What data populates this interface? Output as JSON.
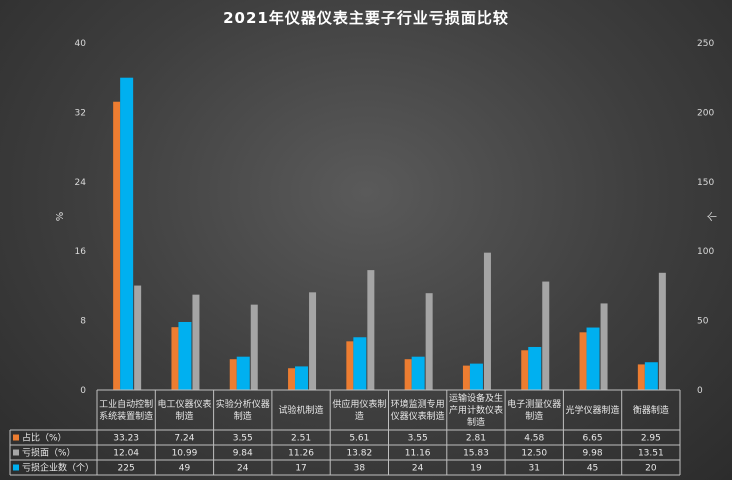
{
  "chart_data": {
    "type": "bar",
    "title": "2021年仪器仪表主要子行业亏损面比较",
    "ylabel": "%",
    "y2label": "个",
    "ylim": [
      0,
      40
    ],
    "y2lim": [
      0,
      250
    ],
    "yticks": [
      0,
      8,
      16,
      24,
      32,
      40
    ],
    "y2ticks": [
      0,
      50,
      100,
      150,
      200,
      250
    ],
    "categories": [
      [
        "工业自动控制",
        "系统装置制造"
      ],
      [
        "电工仪器仪表",
        "制造"
      ],
      [
        "实验分析仪器",
        "制造"
      ],
      [
        "试验机制造"
      ],
      [
        "供应用仪表制",
        "造"
      ],
      [
        "环境监测专用",
        "仪器仪表制造"
      ],
      [
        "运输设备及生",
        "产用计数仪表",
        "制造"
      ],
      [
        "电子测量仪器",
        "制造"
      ],
      [
        "光学仪器制造"
      ],
      [
        "衡器制造"
      ]
    ],
    "series": [
      {
        "name": "占比（%）",
        "axis": "left",
        "color": "#ed7d31",
        "values": [
          "33.23",
          "7.24",
          "3.55",
          "2.51",
          "5.61",
          "3.55",
          "2.81",
          "4.58",
          "6.65",
          "2.95"
        ]
      },
      {
        "name": "亏损面（%）",
        "axis": "left",
        "color": "#a5a5a5",
        "values": [
          "12.04",
          "10.99",
          "9.84",
          "11.26",
          "13.82",
          "11.16",
          "15.83",
          "12.50",
          "9.98",
          "13.51"
        ]
      },
      {
        "name": "亏损企业数（个）",
        "axis": "right",
        "color": "#00b0f0",
        "values": [
          "225",
          "49",
          "24",
          "17",
          "38",
          "24",
          "19",
          "31",
          "45",
          "20"
        ]
      }
    ],
    "grid": false,
    "legend": "data-table"
  }
}
